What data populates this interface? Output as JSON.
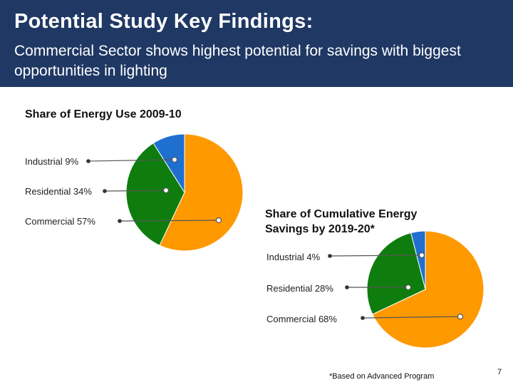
{
  "header": {
    "title": "Potential Study Key Findings:",
    "subtitle": "Commercial Sector shows highest potential for savings with biggest opportunities in lighting"
  },
  "chart_data": [
    {
      "type": "pie",
      "title": "Share of Energy Use 2009-10",
      "slices": [
        {
          "label": "Industrial 9%",
          "name": "Industrial",
          "value": 9,
          "color": "#1f6fd1"
        },
        {
          "label": "Residential 34%",
          "name": "Residential",
          "value": 34,
          "color": "#0e7d0e"
        },
        {
          "label": "Commercial 57%",
          "name": "Commercial",
          "value": 57,
          "color": "#ff9900"
        }
      ]
    },
    {
      "type": "pie",
      "title": "Share of Cumulative Energy Savings by 2019-20*",
      "slices": [
        {
          "label": "Industrial 4%",
          "name": "Industrial",
          "value": 4,
          "color": "#1f6fd1"
        },
        {
          "label": "Residential 28%",
          "name": "Residential",
          "value": 28,
          "color": "#0e7d0e"
        },
        {
          "label": "Commercial 68%",
          "name": "Commercial",
          "value": 68,
          "color": "#ff9900"
        }
      ]
    }
  ],
  "footnote": "*Based on Advanced Program",
  "page_number": "7"
}
